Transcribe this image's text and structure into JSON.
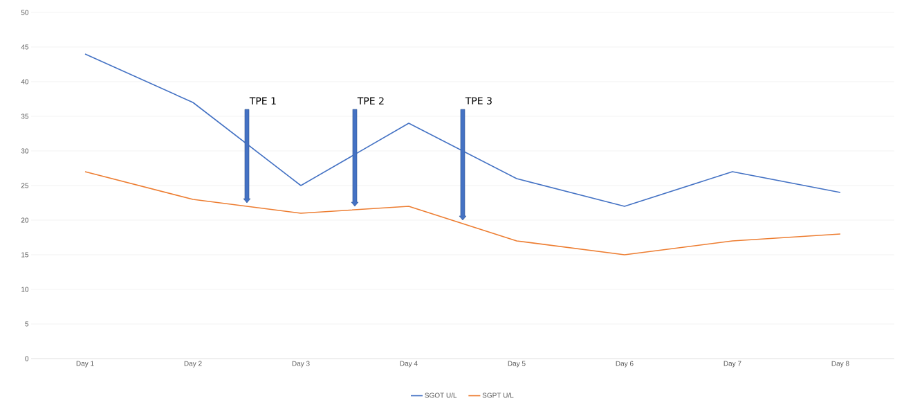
{
  "chart_data": {
    "type": "line",
    "categories": [
      "Day 1",
      "Day 2",
      "Day 3",
      "Day 4",
      "Day 5",
      "Day 6",
      "Day 7",
      "Day 8"
    ],
    "series": [
      {
        "name": "SGOT U/L",
        "color": "#4472c4",
        "values": [
          44,
          37,
          25,
          34,
          26,
          22,
          27,
          24
        ]
      },
      {
        "name": "SGPT U/L",
        "color": "#ed7d31",
        "values": [
          27,
          23,
          21,
          22,
          17,
          15,
          17,
          18
        ]
      }
    ],
    "ylim": [
      0,
      50
    ],
    "yticks": [
      0,
      5,
      10,
      15,
      20,
      25,
      30,
      35,
      40,
      45,
      50
    ],
    "grid": "y",
    "legend": "bottom",
    "marker": "none",
    "line_style": "solid",
    "annotations": [
      "TPE 1",
      "TPE 2",
      "TPE 3"
    ]
  }
}
